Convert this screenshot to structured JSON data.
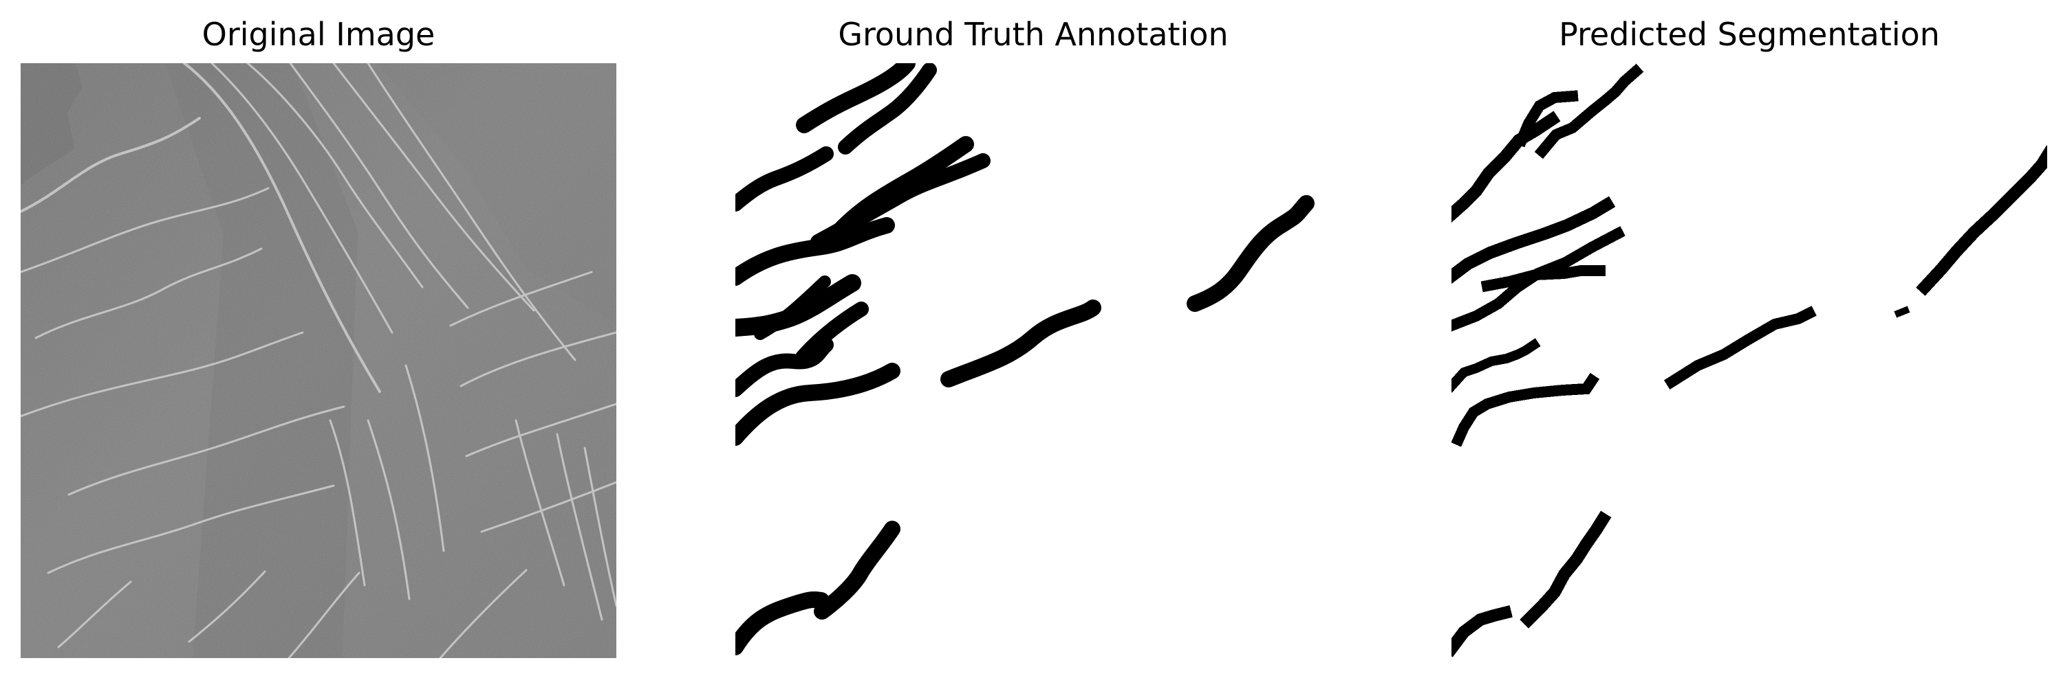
{
  "figure": {
    "panels": [
      {
        "key": "original",
        "title": "Original Image",
        "kind": "grayscale-photo"
      },
      {
        "key": "ground_truth",
        "title": "Ground Truth Annotation",
        "kind": "binary-mask"
      },
      {
        "key": "prediction",
        "title": "Predicted Segmentation",
        "kind": "binary-mask-pixelated"
      }
    ],
    "colors": {
      "background": "#ffffff",
      "mask_foreground": "#000000",
      "photo_base": "#7f7f7f",
      "photo_dark": "#6b6b6b",
      "photo_light": "#c7c7c7"
    }
  }
}
